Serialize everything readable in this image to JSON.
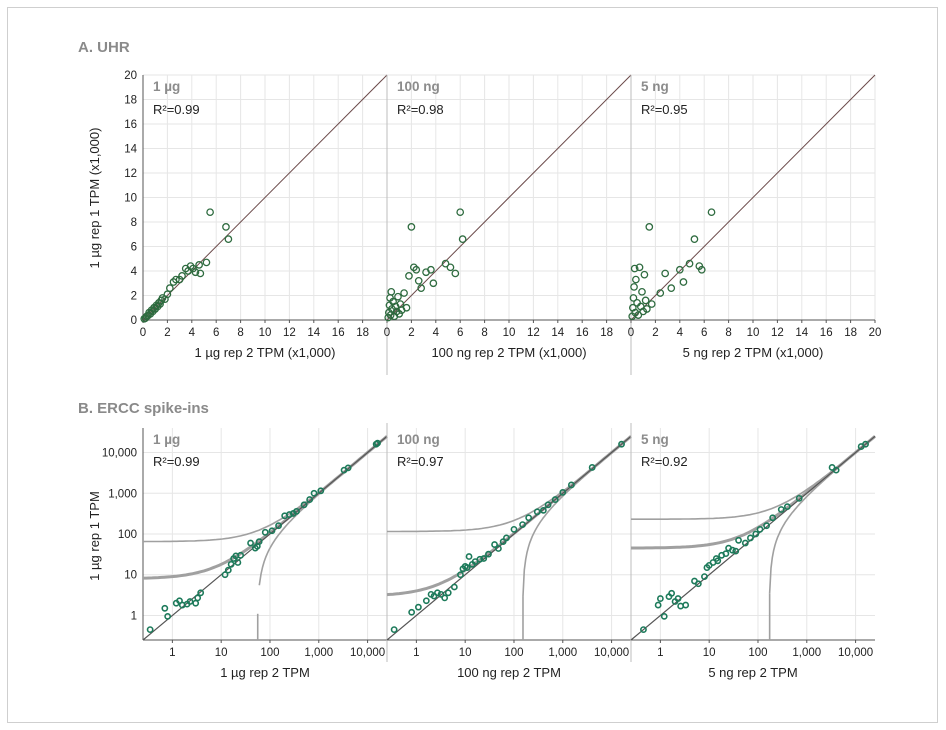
{
  "sections": {
    "a_title": "A. UHR",
    "b_title": "B. ERCC spike-ins"
  },
  "colors": {
    "point_stroke": "#2e6b3f",
    "point_fill_b": "#1c7a5a",
    "diag_line": "#6b4a4a",
    "curve_gray": "#a0a0a0",
    "grid": "#e6e6e6",
    "section_title": "#8a8a8a"
  },
  "chart_data": [
    {
      "id": "uhr",
      "type": "scatter",
      "ylabel": "1 µg rep 1 TPM (x1,000)",
      "xlim": [
        0,
        20
      ],
      "ylim": [
        0,
        20
      ],
      "ticks": [
        0,
        2,
        4,
        6,
        8,
        10,
        12,
        14,
        16,
        18,
        20
      ],
      "panels": [
        {
          "label": "1 µg",
          "r2": "R²=0.99",
          "xlabel": "1 µg rep 2 TPM (x1,000)",
          "points": [
            [
              0.1,
              0.1
            ],
            [
              0.2,
              0.15
            ],
            [
              0.3,
              0.3
            ],
            [
              0.4,
              0.35
            ],
            [
              0.5,
              0.6
            ],
            [
              0.6,
              0.5
            ],
            [
              0.7,
              0.8
            ],
            [
              0.8,
              0.7
            ],
            [
              0.9,
              1.0
            ],
            [
              1.0,
              0.9
            ],
            [
              1.1,
              1.2
            ],
            [
              1.2,
              1.1
            ],
            [
              1.3,
              1.4
            ],
            [
              1.4,
              1.3
            ],
            [
              1.5,
              1.6
            ],
            [
              1.6,
              1.8
            ],
            [
              1.8,
              1.7
            ],
            [
              2.0,
              2.1
            ],
            [
              2.2,
              2.6
            ],
            [
              2.5,
              3.1
            ],
            [
              2.7,
              3.3
            ],
            [
              3.0,
              3.3
            ],
            [
              3.2,
              3.6
            ],
            [
              3.5,
              4.2
            ],
            [
              3.7,
              4.0
            ],
            [
              3.9,
              4.4
            ],
            [
              4.1,
              4.2
            ],
            [
              4.3,
              3.9
            ],
            [
              4.6,
              4.5
            ],
            [
              4.7,
              3.8
            ],
            [
              5.2,
              4.7
            ],
            [
              5.5,
              8.8
            ],
            [
              6.8,
              7.6
            ],
            [
              7.0,
              6.6
            ]
          ]
        },
        {
          "label": "100 ng",
          "r2": "R²=0.98",
          "xlabel": "100 ng rep 2 TPM (x1,000)",
          "points": [
            [
              0.1,
              0.2
            ],
            [
              0.15,
              0.6
            ],
            [
              0.2,
              1.2
            ],
            [
              0.25,
              1.8
            ],
            [
              0.3,
              0.4
            ],
            [
              0.35,
              2.3
            ],
            [
              0.4,
              0.9
            ],
            [
              0.5,
              1.5
            ],
            [
              0.6,
              0.3
            ],
            [
              0.7,
              1.1
            ],
            [
              0.8,
              0.7
            ],
            [
              0.9,
              1.9
            ],
            [
              1.0,
              0.5
            ],
            [
              1.1,
              1.3
            ],
            [
              1.2,
              0.8
            ],
            [
              1.4,
              2.2
            ],
            [
              1.6,
              1.0
            ],
            [
              1.8,
              3.6
            ],
            [
              2.0,
              7.6
            ],
            [
              2.2,
              4.3
            ],
            [
              2.4,
              4.1
            ],
            [
              2.6,
              3.2
            ],
            [
              2.8,
              2.6
            ],
            [
              3.2,
              3.9
            ],
            [
              3.6,
              4.1
            ],
            [
              3.8,
              3.0
            ],
            [
              4.8,
              4.6
            ],
            [
              5.2,
              4.3
            ],
            [
              5.6,
              3.8
            ],
            [
              6.0,
              8.8
            ],
            [
              6.2,
              6.6
            ]
          ]
        },
        {
          "label": "5 ng",
          "r2": "R²=0.95",
          "xlabel": "5 ng rep 2 TPM (x1,000)",
          "points": [
            [
              0.1,
              0.3
            ],
            [
              0.15,
              1.0
            ],
            [
              0.2,
              1.8
            ],
            [
              0.25,
              2.7
            ],
            [
              0.3,
              4.2
            ],
            [
              0.35,
              0.6
            ],
            [
              0.4,
              3.3
            ],
            [
              0.5,
              1.4
            ],
            [
              0.6,
              0.4
            ],
            [
              0.7,
              4.3
            ],
            [
              0.8,
              1.1
            ],
            [
              0.9,
              2.3
            ],
            [
              1.0,
              0.7
            ],
            [
              1.1,
              3.7
            ],
            [
              1.2,
              1.6
            ],
            [
              1.3,
              0.9
            ],
            [
              1.5,
              7.6
            ],
            [
              1.7,
              1.3
            ],
            [
              2.4,
              2.2
            ],
            [
              2.8,
              3.8
            ],
            [
              3.3,
              2.6
            ],
            [
              4.0,
              4.1
            ],
            [
              4.3,
              3.1
            ],
            [
              4.8,
              4.6
            ],
            [
              5.2,
              6.6
            ],
            [
              5.6,
              4.4
            ],
            [
              5.8,
              4.1
            ],
            [
              6.6,
              8.8
            ]
          ]
        }
      ]
    },
    {
      "id": "ercc",
      "type": "scatter",
      "ylabel": "1 µg rep 1 TPM",
      "scale": "log",
      "xlim": [
        0.25,
        25000
      ],
      "ylim": [
        0.25,
        40000
      ],
      "xticks": [
        "1",
        "10",
        "100",
        "1,000",
        "10,000"
      ],
      "yticks": [
        "1",
        "10",
        "100",
        "1,000",
        "10,000"
      ],
      "panels": [
        {
          "label": "1 µg",
          "r2": "R²=0.99",
          "xlabel": "1 µg rep 2 TPM",
          "points": [
            [
              0.35,
              0.45
            ],
            [
              0.7,
              1.5
            ],
            [
              0.8,
              0.95
            ],
            [
              1.2,
              2.0
            ],
            [
              1.4,
              2.3
            ],
            [
              1.6,
              1.8
            ],
            [
              2.0,
              1.9
            ],
            [
              2.3,
              2.2
            ],
            [
              3.0,
              2.0
            ],
            [
              3.3,
              2.7
            ],
            [
              3.8,
              3.6
            ],
            [
              12,
              10
            ],
            [
              14,
              13
            ],
            [
              16,
              18
            ],
            [
              18,
              25
            ],
            [
              20,
              29
            ],
            [
              22,
              20
            ],
            [
              25,
              30
            ],
            [
              40,
              60
            ],
            [
              50,
              45
            ],
            [
              55,
              50
            ],
            [
              60,
              65
            ],
            [
              80,
              110
            ],
            [
              110,
              120
            ],
            [
              150,
              160
            ],
            [
              200,
              280
            ],
            [
              250,
              300
            ],
            [
              300,
              320
            ],
            [
              350,
              360
            ],
            [
              500,
              520
            ],
            [
              650,
              700
            ],
            [
              800,
              1000
            ],
            [
              1100,
              1150
            ],
            [
              3300,
              3700
            ],
            [
              4000,
              4200
            ],
            [
              15000,
              16000
            ],
            [
              16000,
              17000
            ]
          ]
        },
        {
          "label": "100 ng",
          "r2": "R²=0.97",
          "xlabel": "100 ng rep 2 TPM",
          "points": [
            [
              0.35,
              0.45
            ],
            [
              0.8,
              1.2
            ],
            [
              1.1,
              1.6
            ],
            [
              1.6,
              2.3
            ],
            [
              2.0,
              3.3
            ],
            [
              2.3,
              3.0
            ],
            [
              2.7,
              3.6
            ],
            [
              3.2,
              3.3
            ],
            [
              3.8,
              2.7
            ],
            [
              4.5,
              3.6
            ],
            [
              6,
              5
            ],
            [
              8,
              10
            ],
            [
              9,
              14
            ],
            [
              10,
              16
            ],
            [
              11,
              15
            ],
            [
              12,
              28
            ],
            [
              14,
              18
            ],
            [
              16,
              21
            ],
            [
              20,
              24
            ],
            [
              24,
              25
            ],
            [
              30,
              32
            ],
            [
              40,
              55
            ],
            [
              48,
              44
            ],
            [
              60,
              65
            ],
            [
              70,
              80
            ],
            [
              100,
              130
            ],
            [
              150,
              170
            ],
            [
              200,
              250
            ],
            [
              300,
              350
            ],
            [
              400,
              380
            ],
            [
              500,
              520
            ],
            [
              700,
              700
            ],
            [
              1000,
              1050
            ],
            [
              1500,
              1600
            ],
            [
              4000,
              4300
            ],
            [
              16000,
              16000
            ]
          ]
        },
        {
          "label": "5 ng",
          "r2": "R²=0.92",
          "xlabel": "5 ng rep 2 TPM",
          "points": [
            [
              0.45,
              0.45
            ],
            [
              0.9,
              1.8
            ],
            [
              1.0,
              2.6
            ],
            [
              1.2,
              0.95
            ],
            [
              1.5,
              2.9
            ],
            [
              1.7,
              3.5
            ],
            [
              2.0,
              2.2
            ],
            [
              2.3,
              2.6
            ],
            [
              2.6,
              1.7
            ],
            [
              3.3,
              1.8
            ],
            [
              5,
              7
            ],
            [
              6,
              6
            ],
            [
              8,
              9
            ],
            [
              9,
              15
            ],
            [
              10,
              17
            ],
            [
              12,
              20
            ],
            [
              14,
              25
            ],
            [
              15,
              22
            ],
            [
              18,
              30
            ],
            [
              22,
              33
            ],
            [
              25,
              45
            ],
            [
              30,
              40
            ],
            [
              35,
              38
            ],
            [
              40,
              70
            ],
            [
              55,
              60
            ],
            [
              70,
              80
            ],
            [
              90,
              100
            ],
            [
              110,
              130
            ],
            [
              150,
              160
            ],
            [
              200,
              250
            ],
            [
              300,
              400
            ],
            [
              400,
              470
            ],
            [
              700,
              750
            ],
            [
              3300,
              4300
            ],
            [
              4000,
              3700
            ],
            [
              13000,
              14000
            ],
            [
              16000,
              16000
            ]
          ]
        }
      ]
    }
  ]
}
